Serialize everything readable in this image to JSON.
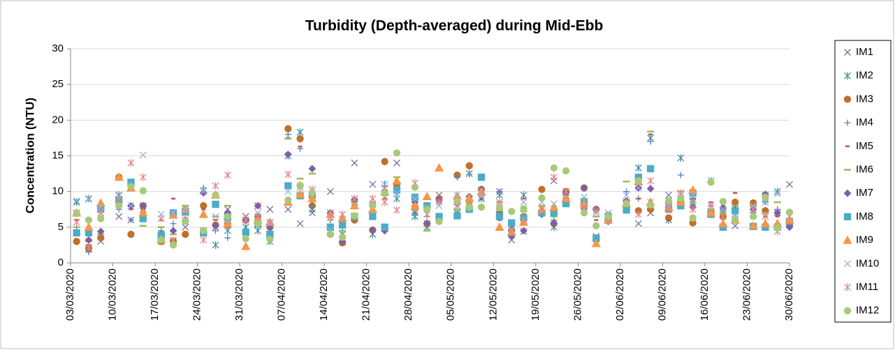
{
  "chart_data": {
    "type": "scatter",
    "title": "Turbidity (Depth-averaged) during Mid-Ebb",
    "y_label": "Concentration (NTU)",
    "x": [
      "04/03/2020",
      "06/03/2020",
      "08/03/2020",
      "11/03/2020",
      "13/03/2020",
      "15/03/2020",
      "18/03/2020",
      "20/03/2020",
      "22/03/2020",
      "25/03/2020",
      "27/03/2020",
      "29/03/2020",
      "01/04/2020",
      "03/04/2020",
      "05/04/2020",
      "08/04/2020",
      "10/04/2020",
      "12/04/2020",
      "15/04/2020",
      "17/04/2020",
      "19/04/2020",
      "22/04/2020",
      "24/04/2020",
      "26/04/2020",
      "29/04/2020",
      "01/05/2020",
      "03/05/2020",
      "06/05/2020",
      "08/05/2020",
      "10/05/2020",
      "13/05/2020",
      "15/05/2020",
      "17/05/2020",
      "20/05/2020",
      "22/05/2020",
      "24/05/2020",
      "27/05/2020",
      "29/05/2020",
      "31/05/2020",
      "03/06/2020",
      "05/06/2020",
      "07/06/2020",
      "10/06/2020",
      "12/06/2020",
      "14/06/2020",
      "17/06/2020",
      "19/06/2020",
      "21/06/2020",
      "24/06/2020",
      "26/06/2020",
      "28/06/2020",
      "30/06/2020"
    ],
    "xlim": [
      "03/03/2020",
      "30/06/2020"
    ],
    "xticks": [
      "03/03/2020",
      "10/03/2020",
      "17/03/2020",
      "24/03/2020",
      "31/03/2020",
      "07/04/2020",
      "14/04/2020",
      "21/04/2020",
      "28/04/2020",
      "05/05/2020",
      "12/05/2020",
      "19/05/2020",
      "26/05/2020",
      "02/06/2020",
      "09/06/2020",
      "16/06/2020",
      "23/06/2020",
      "30/06/2020"
    ],
    "ylim": [
      0,
      30
    ],
    "yticks": [
      0,
      5,
      10,
      15,
      20,
      25,
      30
    ],
    "grid": true,
    "legend": "right",
    "series": [
      {
        "name": "IM1",
        "color": "#7d6aa0",
        "marker": "x",
        "values": [
          7,
          2,
          3,
          6.5,
          6,
          8,
          3,
          3,
          5,
          10,
          5,
          7.5,
          6.5,
          8,
          7.5,
          7.5,
          5.5,
          7,
          10,
          3,
          14,
          11,
          10.5,
          14,
          7,
          5.5,
          9.5,
          7,
          8.5,
          9,
          10,
          3.2,
          4.4,
          7,
          11.5,
          9.5,
          8,
          3.7,
          6,
          8.5,
          5.5,
          7,
          9.5,
          9,
          9.5,
          7,
          7,
          5.2,
          7.5,
          9.5,
          7,
          11
        ]
      },
      {
        "name": "IM2",
        "color": "#3f8f9f",
        "marker": "star",
        "values": [
          8.5,
          9,
          7.5,
          9.5,
          11,
          7.5,
          4,
          7,
          7,
          4.5,
          2.5,
          4.5,
          5,
          4.5,
          3,
          15,
          18.3,
          7.5,
          7,
          4,
          8.5,
          4,
          11,
          9,
          6.5,
          5,
          6,
          7,
          12.5,
          9,
          9.5,
          4,
          9.5,
          7,
          5,
          8.5,
          8,
          3.5,
          6,
          8.5,
          13.3,
          17.5,
          6,
          14.7,
          8.5,
          11.5,
          7,
          6,
          8,
          9,
          10,
          5.5
        ]
      },
      {
        "name": "IM3",
        "color": "#c0702a",
        "marker": "circle",
        "values": [
          3,
          2,
          3.5,
          12,
          4,
          8,
          3,
          3,
          4,
          8,
          5.3,
          5.5,
          6,
          6.5,
          5,
          18.8,
          17.4,
          8,
          4,
          2.8,
          6,
          4.6,
          14.2,
          11,
          7.8,
          5.5,
          9,
          12.3,
          13.6,
          10.3,
          7,
          4.5,
          6.5,
          10.3,
          5.5,
          10,
          10.5,
          7.5,
          6,
          7.5,
          7.3,
          7.5,
          6.3,
          8.5,
          5.6,
          7,
          6.5,
          8.5,
          8.4,
          7.3,
          5,
          5.3
        ]
      },
      {
        "name": "IM4",
        "color": "#4f81bd",
        "marker": "plus",
        "values": [
          5,
          1.5,
          4,
          7.5,
          6,
          8,
          4.5,
          5.5,
          7,
          10.5,
          4.5,
          3.5,
          4.5,
          5,
          4,
          18,
          16,
          8,
          6,
          4.5,
          9,
          8.5,
          9.5,
          10,
          7,
          6.5,
          8.5,
          12,
          12.4,
          9.5,
          10,
          4.5,
          7.5,
          7,
          6,
          9,
          7.5,
          3.5,
          6.5,
          10,
          9,
          17,
          8,
          12.3,
          9,
          8,
          8.5,
          7,
          7,
          8.5,
          7.5,
          6
        ]
      },
      {
        "name": "IM5",
        "color": "#c0504d",
        "marker": "dash",
        "values": [
          6,
          2.5,
          8,
          12,
          7.5,
          7.5,
          6,
          9,
          8,
          7.5,
          6,
          5,
          6,
          6.5,
          5.5,
          17.5,
          16.3,
          10,
          4,
          5.5,
          9,
          8,
          9,
          10.5,
          7.5,
          9,
          9,
          9,
          9,
          9,
          6,
          5,
          9,
          8,
          7,
          9,
          7,
          6,
          7,
          8,
          9,
          18,
          6,
          8.5,
          9,
          8.5,
          8,
          9.8,
          7.5,
          6.5,
          6.5,
          5.5
        ]
      },
      {
        "name": "IM6",
        "color": "#9bbb59",
        "marker": "wdash",
        "values": [
          5,
          3,
          4,
          9,
          8,
          5.2,
          5,
          4,
          8,
          9.7,
          6.5,
          8,
          6,
          6.3,
          4,
          17.4,
          11.8,
          12.5,
          4,
          4.5,
          8.5,
          8.3,
          9.5,
          12,
          7.5,
          4.5,
          6,
          7.5,
          8.5,
          10.5,
          8.5,
          5.5,
          7.2,
          8,
          6.5,
          9.5,
          10.5,
          6.5,
          6.7,
          11.4,
          11.5,
          18.4,
          8.5,
          10,
          8.5,
          7.5,
          7,
          8,
          8,
          7,
          8.5,
          7
        ]
      },
      {
        "name": "IM7",
        "color": "#7e5fa6",
        "marker": "diamond",
        "values": [
          4.2,
          3.2,
          4.4,
          8,
          8,
          8,
          4,
          4.5,
          6,
          9.8,
          5.2,
          7,
          6,
          8,
          5,
          15.2,
          10.9,
          13.2,
          7,
          3,
          8.8,
          4.6,
          4.5,
          10,
          8.5,
          5.5,
          8.8,
          8.3,
          9.3,
          10.3,
          7.5,
          3.8,
          4.5,
          6.8,
          5.5,
          9.8,
          10.5,
          7.5,
          5.8,
          8.7,
          10.5,
          10.4,
          8.3,
          9,
          7.8,
          6.8,
          7.7,
          7.5,
          7.5,
          9.6,
          7,
          5
        ]
      },
      {
        "name": "IM8",
        "color": "#4bacc6",
        "marker": "square",
        "values": [
          4.2,
          4.2,
          7.5,
          8.8,
          11.3,
          6.2,
          3.8,
          7,
          7.2,
          4.2,
          8.2,
          6.4,
          4.3,
          5.5,
          4,
          10.8,
          9.4,
          9.5,
          5,
          5.3,
          6.5,
          6.5,
          5,
          10.2,
          9.2,
          8,
          6.5,
          6.6,
          7.5,
          12,
          6.5,
          5.6,
          6.3,
          7,
          7,
          8.3,
          8.6,
          3.4,
          6.5,
          7.4,
          12,
          13.2,
          7.5,
          8,
          9.8,
          6.8,
          5,
          7.3,
          5.1,
          5,
          5,
          5.8
        ]
      },
      {
        "name": "IM9",
        "color": "#f79646",
        "marker": "triangle",
        "values": [
          7,
          5,
          8.4,
          12,
          10.5,
          7,
          3.3,
          6.7,
          7.5,
          6.8,
          9.5,
          5.5,
          2.3,
          6,
          5.7,
          8.5,
          9.6,
          9,
          6.8,
          6.3,
          8,
          7.5,
          10,
          11.5,
          8,
          9.3,
          13.3,
          9.4,
          9.1,
          10,
          5,
          4.3,
          5.7,
          7.5,
          7.8,
          9,
          8.3,
          2.7,
          6,
          8.3,
          11.4,
          8.5,
          7.8,
          8.5,
          10.2,
          7,
          5.5,
          6,
          5.2,
          5.5,
          5.5,
          6
        ]
      },
      {
        "name": "IM10",
        "color": "#8db3e2",
        "marker": "x",
        "values": [
          8.7,
          8.9,
          7.8,
          9.4,
          8,
          15.1,
          6.8,
          7,
          7.5,
          10,
          6.5,
          6,
          6,
          7,
          5.5,
          10,
          10.5,
          10,
          4.6,
          6.8,
          9,
          9,
          11,
          9.7,
          9,
          7.8,
          8,
          9.5,
          8,
          9.3,
          8.5,
          4.7,
          8.5,
          8.5,
          8.3,
          10,
          9.2,
          7,
          7,
          9.5,
          10.5,
          8.5,
          8,
          9.5,
          9.5,
          11.5,
          7.5,
          6.5,
          8,
          8.5,
          9.7,
          6.5
        ]
      },
      {
        "name": "IM11",
        "color": "#e6868a",
        "marker": "star",
        "values": [
          5.7,
          2.2,
          7,
          9,
          14,
          12,
          6.2,
          3.2,
          6,
          3.2,
          10.8,
          12.3,
          6,
          6.5,
          5.7,
          12.4,
          10.8,
          10.3,
          6.4,
          6.8,
          9,
          9,
          8.5,
          7.4,
          11.2,
          6.8,
          8.5,
          8,
          8,
          10,
          8.5,
          4.4,
          6,
          7.5,
          12,
          10,
          7.8,
          7.3,
          6,
          8.5,
          6.8,
          11.5,
          7.5,
          9.8,
          7.5,
          8,
          6.5,
          6.2,
          7.5,
          6.5,
          4.4,
          6.5
        ]
      },
      {
        "name": "IM12",
        "color": "#a9c97a",
        "marker": "circle",
        "values": [
          6.9,
          6,
          6.2,
          8,
          10.7,
          10.1,
          3.2,
          2.5,
          5.8,
          4.5,
          9.5,
          6.5,
          3.4,
          5.5,
          3.3,
          8.8,
          10.8,
          9.8,
          4,
          3.6,
          6.6,
          8,
          9.7,
          15.4,
          10.6,
          7.5,
          5.8,
          8.6,
          7.8,
          7.8,
          7.7,
          7.2,
          7.6,
          9.1,
          13.3,
          12.9,
          7,
          5.2,
          6.5,
          8.3,
          11.5,
          8.1,
          8.7,
          9,
          6.3,
          11.3,
          8.6,
          6,
          6.5,
          9.2,
          4.9,
          7.1
        ]
      }
    ]
  }
}
